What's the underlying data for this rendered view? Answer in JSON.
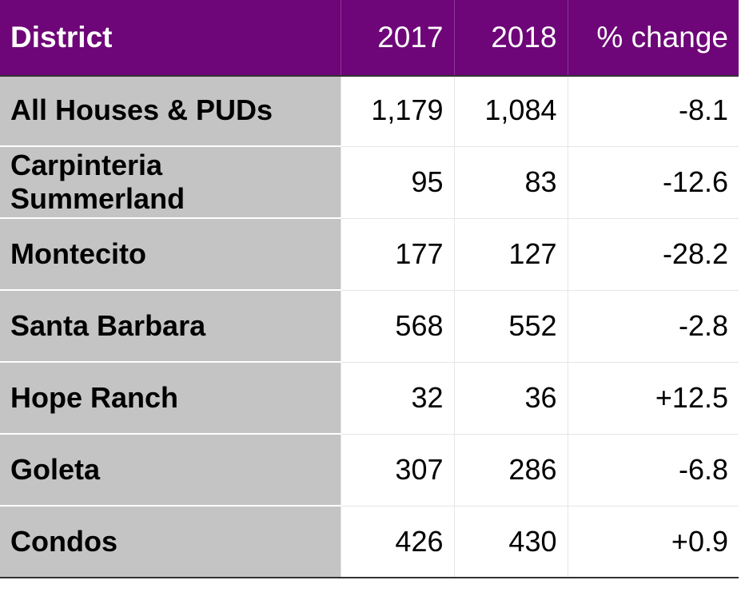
{
  "chart_data": {
    "type": "table",
    "columns": [
      "District",
      "2017",
      "2018",
      "% change"
    ],
    "rows": [
      {
        "district": "All Houses & PUDs",
        "y2017": "1,179",
        "y2018": "1,084",
        "change": "-8.1"
      },
      {
        "district": "Carpinteria Summerland",
        "y2017": "95",
        "y2018": "83",
        "change": "-12.6"
      },
      {
        "district": "Montecito",
        "y2017": "177",
        "y2018": "127",
        "change": "-28.2"
      },
      {
        "district": "Santa Barbara",
        "y2017": "568",
        "y2018": "552",
        "change": "-2.8"
      },
      {
        "district": "Hope Ranch",
        "y2017": "32",
        "y2018": "36",
        "change": "+12.5"
      },
      {
        "district": "Goleta",
        "y2017": "307",
        "y2018": "286",
        "change": "-6.8"
      },
      {
        "district": "Condos",
        "y2017": "426",
        "y2018": "430",
        "change": "+0.9"
      }
    ]
  },
  "colors": {
    "header_background": "#6e0578",
    "header_text": "#ffffff",
    "district_cell_background": "#c4c4c4",
    "value_cell_background": "#ffffff"
  }
}
